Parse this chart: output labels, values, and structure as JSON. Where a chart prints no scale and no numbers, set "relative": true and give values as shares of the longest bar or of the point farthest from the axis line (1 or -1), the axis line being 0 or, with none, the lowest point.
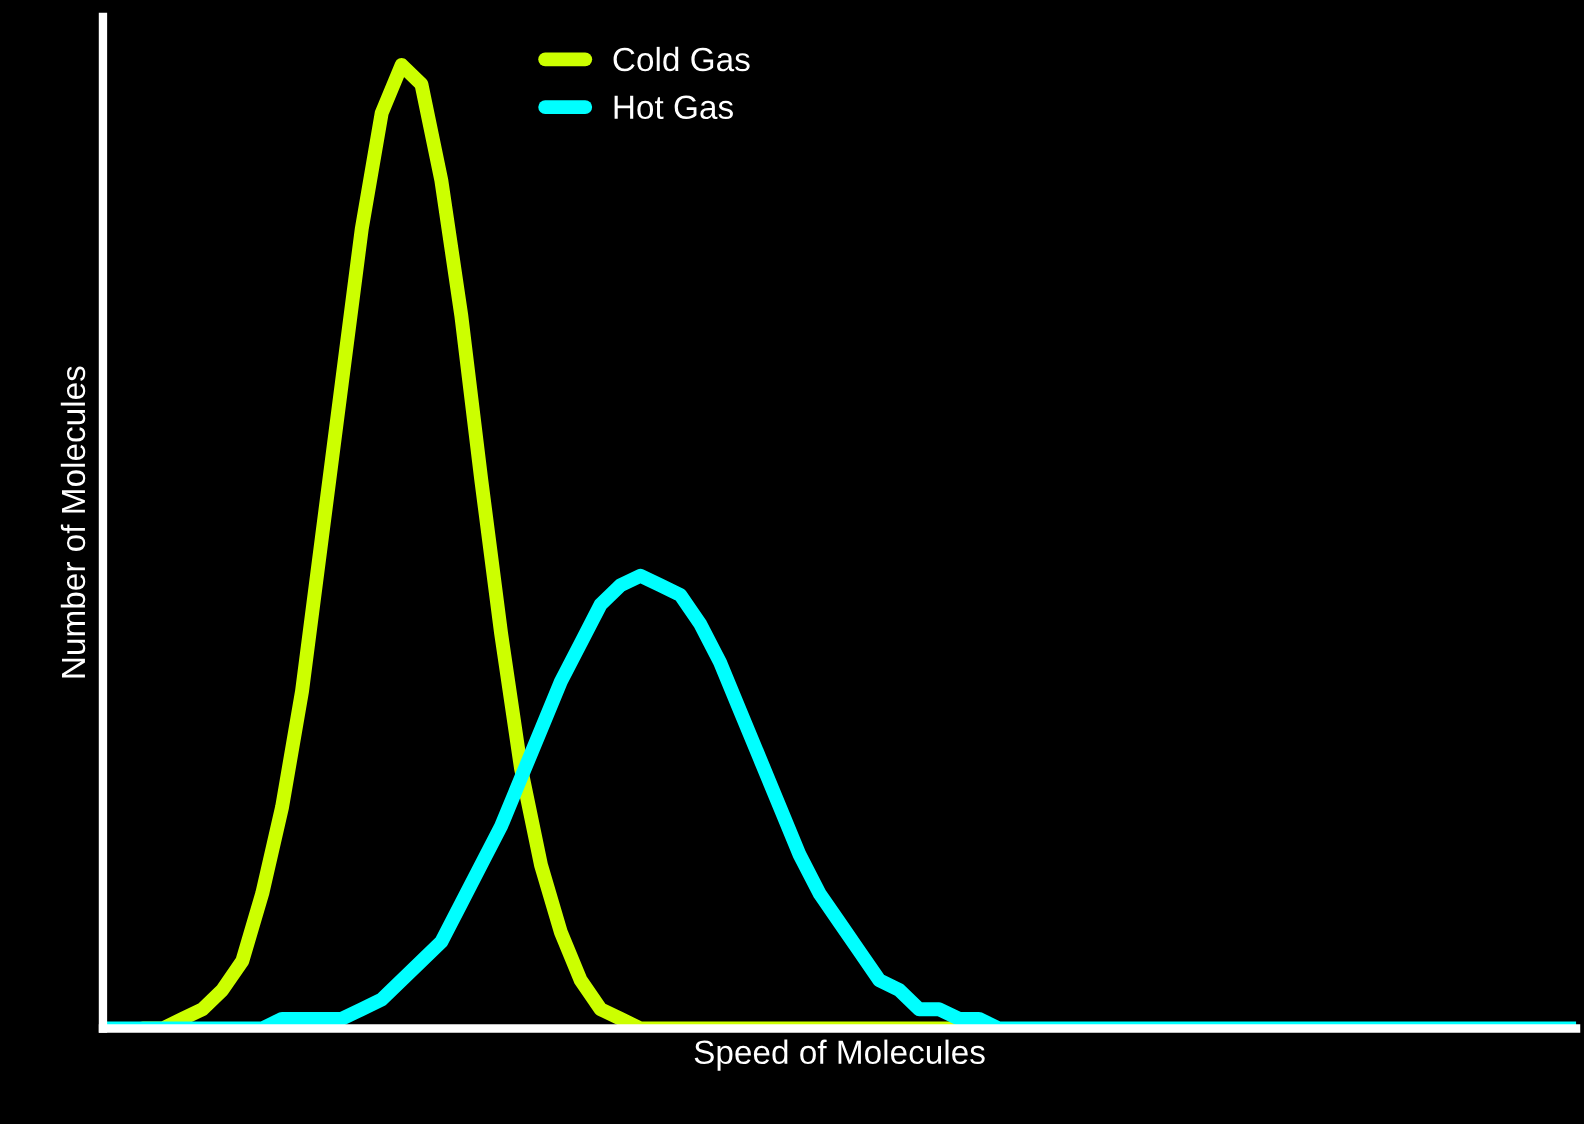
{
  "chart_data": {
    "type": "line",
    "relative": true,
    "xlabel": "Speed of Molecules",
    "ylabel": "Number of Molecules",
    "categories": [
      null,
      null,
      null,
      null,
      null,
      null,
      null,
      null,
      null,
      null,
      null,
      null,
      null,
      null,
      null,
      null,
      null,
      null,
      null,
      null,
      null,
      null,
      null,
      null,
      null,
      null,
      null,
      null,
      null,
      null,
      null,
      null,
      null,
      null,
      null,
      null,
      null,
      null,
      null,
      null,
      null,
      null,
      null,
      null,
      null,
      null,
      null,
      null,
      null,
      null,
      null,
      null,
      null,
      null,
      null,
      null,
      null,
      null,
      null,
      null,
      null,
      null,
      null,
      null,
      null,
      null,
      null,
      null,
      null,
      null,
      null,
      null,
      null,
      null,
      null
    ],
    "series": [
      {
        "name": "Cold Gas",
        "color": "#ccff00",
        "values": [
          null,
          null,
          0,
          0,
          0.01,
          0.02,
          0.04,
          0.07,
          0.14,
          0.23,
          0.35,
          0.51,
          0.67,
          0.83,
          0.95,
          1.0,
          0.98,
          0.88,
          0.74,
          0.57,
          0.41,
          0.27,
          0.17,
          0.1,
          0.05,
          0.02,
          0.01,
          0,
          0,
          0,
          0,
          0,
          0,
          0,
          0,
          0,
          0,
          0,
          0,
          0,
          0,
          0,
          0,
          0,
          0,
          null,
          null,
          null,
          null,
          null,
          null,
          null,
          null,
          null,
          null,
          null,
          null,
          null,
          null,
          null,
          null,
          null,
          null,
          null,
          null,
          null,
          null,
          null,
          null,
          null,
          null,
          null,
          null,
          null,
          null
        ]
      },
      {
        "name": "Hot Gas",
        "color": "#00ffff",
        "values": [
          0,
          0,
          0,
          0,
          0,
          0,
          0,
          0,
          0,
          0.01,
          0.01,
          0.01,
          0.01,
          0.02,
          0.03,
          0.05,
          0.07,
          0.09,
          0.13,
          0.17,
          0.21,
          0.26,
          0.31,
          0.36,
          0.4,
          0.44,
          0.46,
          0.47,
          0.46,
          0.45,
          0.42,
          0.38,
          0.33,
          0.28,
          0.23,
          0.18,
          0.14,
          0.11,
          0.08,
          0.05,
          0.04,
          0.02,
          0.02,
          0.01,
          0.01,
          0,
          0,
          0,
          0,
          0,
          0,
          0,
          0,
          0,
          0,
          0,
          0,
          0,
          0,
          0,
          0,
          0,
          0,
          0,
          0,
          0,
          0,
          0,
          0,
          0,
          0,
          0,
          0,
          0,
          0
        ]
      }
    ],
    "legend": "top",
    "tick_labels": false,
    "marker": "none",
    "line_style": "solid"
  }
}
